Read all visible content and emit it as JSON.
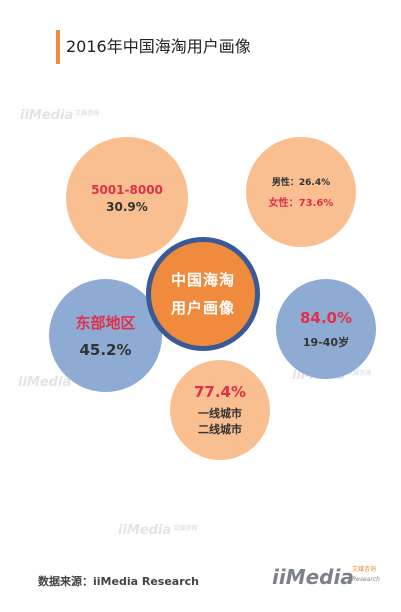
{
  "title": "2016年中国海淘用户画像",
  "watermark": {
    "text": "iiMedia",
    "cn": "艾媒咨询"
  },
  "center": {
    "line1": "中国海淘",
    "line2": "用户画像"
  },
  "income": {
    "range": "5001-8000",
    "pct": "30.9%"
  },
  "gender": {
    "male": "男性：26.4%",
    "female": "女性：73.6%"
  },
  "region": {
    "name": "东部地区",
    "pct": "45.2%"
  },
  "age": {
    "pct": "84.0%",
    "range": "19-40岁"
  },
  "city": {
    "pct": "77.4%",
    "line1": "一线城市",
    "line2": "二线城市"
  },
  "footer": {
    "source": "数据来源：iiMedia Research",
    "logo": "iiMedia",
    "logo_cn": "艾媒咨询",
    "logo_en": "Research"
  },
  "colors": {
    "accent": "#f08a3c",
    "peach": "#f9bf90",
    "blue": "#8eabd3",
    "ring": "#3a5a96",
    "highlight": "#e0304a"
  }
}
